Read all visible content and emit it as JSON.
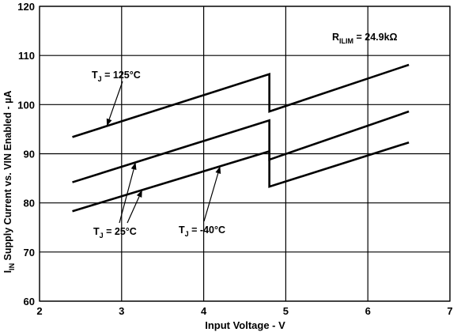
{
  "chart_data": {
    "type": "line",
    "xlabel": "Input Voltage - V",
    "ylabel": {
      "prefix": "I",
      "sub": "IN",
      "rest": " Supply Current vs. VIN Enabled - µA"
    },
    "xlim": [
      2,
      7
    ],
    "ylim": [
      60,
      120
    ],
    "xticks": [
      2,
      3,
      4,
      5,
      6,
      7
    ],
    "yticks": [
      60,
      70,
      80,
      90,
      100,
      110,
      120
    ],
    "grid": true,
    "condition": {
      "prefix": "R",
      "sub": "ILIM",
      "rest": " = 24.9kΩ"
    },
    "series": [
      {
        "name": "T_J = 125°C",
        "label_prefix": "T",
        "label_sub": "J",
        "label_rest": " = 125°C",
        "color": "#000000",
        "x": [
          2.4,
          4.8,
          4.8,
          6.5
        ],
        "y": [
          93.4,
          106.2,
          98.6,
          108.1
        ]
      },
      {
        "name": "T_J = 25°C",
        "label_prefix": "T",
        "label_sub": "J",
        "label_rest": " = 25°C",
        "color": "#000000",
        "x": [
          2.4,
          4.8,
          4.8,
          6.5
        ],
        "y": [
          84.2,
          96.8,
          88.8,
          98.6
        ]
      },
      {
        "name": "T_J = -40°C",
        "label_prefix": "T",
        "label_sub": "J",
        "label_rest": " = -40°C",
        "color": "#000000",
        "x": [
          2.4,
          4.8,
          4.8,
          6.5
        ],
        "y": [
          78.3,
          90.5,
          83.3,
          92.3
        ]
      }
    ]
  }
}
